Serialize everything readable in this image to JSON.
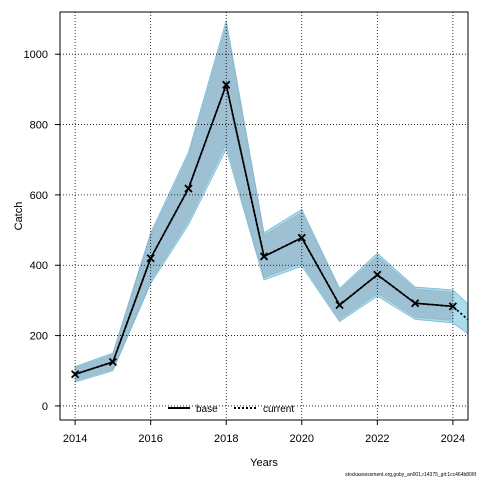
{
  "chart_data": {
    "type": "line",
    "xlabel": "Years",
    "ylabel": "Catch",
    "xlim": [
      2013.6,
      2024.4
    ],
    "ylim": [
      -40,
      1120
    ],
    "x_ticks": [
      2014,
      2016,
      2018,
      2020,
      2022,
      2024
    ],
    "y_ticks": [
      0,
      200,
      400,
      600,
      800,
      1000
    ],
    "grid": true,
    "legend_position": "bottom-center",
    "series": [
      {
        "name": "base",
        "style": "solid",
        "color": "#000000",
        "x": [
          2014,
          2015,
          2016,
          2017,
          2018,
          2019,
          2020,
          2021,
          2022,
          2023,
          2024
        ],
        "y": [
          90,
          125,
          420,
          618,
          913,
          425,
          478,
          287,
          373,
          292,
          283
        ],
        "lower": [
          72,
          104,
          355,
          525,
          745,
          365,
          405,
          245,
          320,
          252,
          243
        ],
        "upper": [
          108,
          146,
          485,
          711,
          1081,
          485,
          551,
          329,
          426,
          332,
          323
        ]
      },
      {
        "name": "current",
        "style": "dotted",
        "color": "#000000",
        "x": [
          2014,
          2015,
          2016,
          2017,
          2018,
          2019,
          2020,
          2021,
          2022,
          2023,
          2024,
          2024.4
        ],
        "y": [
          90,
          125,
          420,
          618,
          913,
          425,
          478,
          287,
          373,
          292,
          283,
          245
        ],
        "lower": [
          68,
          100,
          348,
          515,
          730,
          358,
          397,
          240,
          312,
          246,
          236,
          205
        ],
        "upper": [
          112,
          150,
          492,
          721,
          1096,
          492,
          559,
          334,
          434,
          338,
          330,
          290
        ]
      }
    ],
    "band_colors": {
      "current_band": "#aadcec",
      "base_band": "#9cbfd2"
    },
    "marker": "x"
  },
  "footer_text": "stockassessment.org,goby_an001,r14375_git:1cc464b806f"
}
